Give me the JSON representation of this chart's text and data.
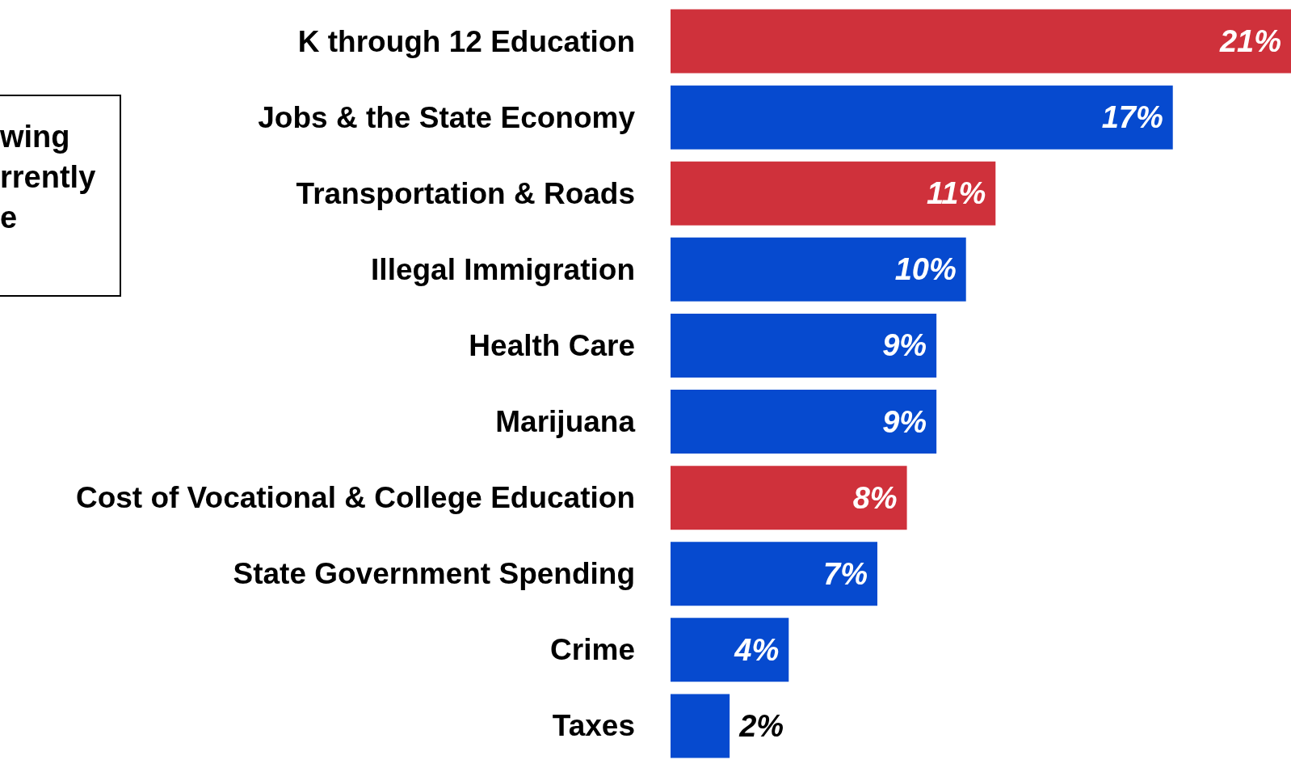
{
  "chart_data": {
    "type": "bar",
    "orientation": "horizontal",
    "categories": [
      "K through 12 Education",
      "Jobs & the State Economy",
      "Transportation & Roads",
      "Illegal Immigration",
      "Health Care",
      "Marijuana",
      "Cost of Vocational & College Education",
      "State Government Spending",
      "Crime",
      "Taxes"
    ],
    "values": [
      21,
      17,
      11,
      10,
      9,
      9,
      8,
      7,
      4,
      2
    ],
    "colors": [
      "#cf313b",
      "#064acf",
      "#cf313b",
      "#064acf",
      "#064acf",
      "#064acf",
      "#cf313b",
      "#064acf",
      "#064acf",
      "#064acf"
    ],
    "value_labels": [
      "21%",
      "17%",
      "11%",
      "10%",
      "9%",
      "9%",
      "8%",
      "7%",
      "4%",
      "2%"
    ],
    "annotations": [
      "wing\nrrently\ne"
    ]
  }
}
